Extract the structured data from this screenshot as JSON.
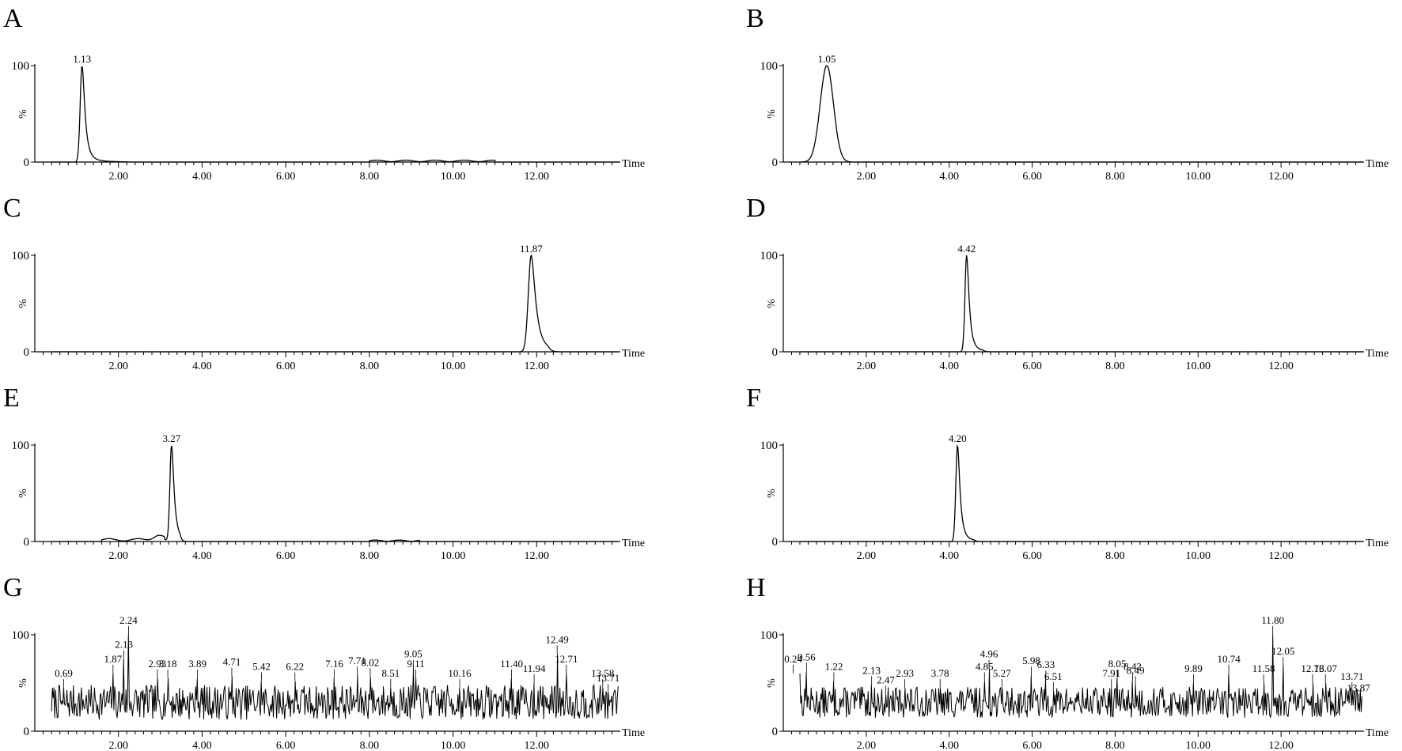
{
  "figure": {
    "background": "#ffffff",
    "line_color": "#000000"
  },
  "chart_data": [
    {
      "type": "line",
      "letter": "A",
      "xlabel": "Time",
      "ylabel": "%",
      "xlim": [
        0,
        14
      ],
      "ylim": [
        0,
        100
      ],
      "xticks": [
        "2.00",
        "4.00",
        "6.00",
        "8.00",
        "10.00",
        "12.00"
      ],
      "yticks": [
        "0",
        "100"
      ],
      "peaks": [
        {
          "x": 1.13,
          "label": "1.13",
          "height": 100,
          "width": 0.045,
          "tail": 0.25
        }
      ],
      "hump": {
        "from": 8.0,
        "to": 11.0,
        "level": 2
      },
      "noise": null
    },
    {
      "type": "line",
      "letter": "B",
      "xlabel": "Time",
      "ylabel": "%",
      "xlim": [
        0,
        14
      ],
      "ylim": [
        0,
        100
      ],
      "xticks": [
        "2.00",
        "4.00",
        "6.00",
        "8.00",
        "10.00",
        "12.00"
      ],
      "yticks": [
        "0",
        "100"
      ],
      "peaks": [
        {
          "x": 1.05,
          "label": "1.05",
          "height": 100,
          "width": 0.16,
          "tail": 0
        }
      ],
      "hump": null,
      "noise": null
    },
    {
      "type": "line",
      "letter": "C",
      "xlabel": "Time",
      "ylabel": "%",
      "xlim": [
        0,
        14
      ],
      "ylim": [
        0,
        100
      ],
      "xticks": [
        "2.00",
        "4.00",
        "6.00",
        "8.00",
        "10.00",
        "12.00"
      ],
      "yticks": [
        "0",
        "100"
      ],
      "peaks": [
        {
          "x": 11.87,
          "label": "11.87",
          "height": 100,
          "width": 0.07,
          "tail": 0.1
        }
      ],
      "hump": null,
      "noise": null
    },
    {
      "type": "line",
      "letter": "D",
      "xlabel": "Time",
      "ylabel": "%",
      "xlim": [
        0,
        14
      ],
      "ylim": [
        0,
        100
      ],
      "xticks": [
        "2.00",
        "4.00",
        "6.00",
        "8.00",
        "10.00",
        "12.00"
      ],
      "yticks": [
        "0",
        "100"
      ],
      "peaks": [
        {
          "x": 4.42,
          "label": "4.42",
          "height": 100,
          "width": 0.04,
          "tail": 0.1
        }
      ],
      "hump": null,
      "noise": null
    },
    {
      "type": "line",
      "letter": "E",
      "xlabel": "Time",
      "ylabel": "%",
      "xlim": [
        0,
        14
      ],
      "ylim": [
        0,
        100
      ],
      "xticks": [
        "2.00",
        "4.00",
        "6.00",
        "8.00",
        "10.00",
        "12.00"
      ],
      "yticks": [
        "0",
        "100"
      ],
      "peaks": [
        {
          "x": 3.27,
          "label": "3.27",
          "height": 100,
          "width": 0.04,
          "tail": 0.05
        },
        {
          "x": 2.95,
          "label": "",
          "height": 5,
          "width": 0.12,
          "tail": 0
        }
      ],
      "hump": {
        "from": 1.6,
        "to": 3.1,
        "level": 3
      },
      "hump2": {
        "from": 8.0,
        "to": 9.2,
        "level": 1.5
      },
      "noise": null
    },
    {
      "type": "line",
      "letter": "F",
      "xlabel": "Time",
      "ylabel": "%",
      "xlim": [
        0,
        14
      ],
      "ylim": [
        0,
        100
      ],
      "xticks": [
        "2.00",
        "4.00",
        "6.00",
        "8.00",
        "10.00",
        "12.00"
      ],
      "yticks": [
        "0",
        "100"
      ],
      "peaks": [
        {
          "x": 4.2,
          "label": "4.20",
          "height": 100,
          "width": 0.04,
          "tail": 0.1
        }
      ],
      "hump": null,
      "noise": null
    },
    {
      "type": "line",
      "letter": "G",
      "xlabel": "Time",
      "ylabel": "%",
      "xlim": [
        0,
        14
      ],
      "ylim": [
        0,
        100
      ],
      "xticks": [
        "2.00",
        "4.00",
        "6.00",
        "8.00",
        "10.00",
        "12.00"
      ],
      "yticks": [
        "0",
        "100"
      ],
      "peaks": [
        {
          "x": 0.69,
          "label": "0.69",
          "height": 45
        },
        {
          "x": 1.87,
          "label": "1.87",
          "height": 60
        },
        {
          "x": 2.13,
          "label": "2.13",
          "height": 75
        },
        {
          "x": 2.24,
          "label": "2.24",
          "height": 100
        },
        {
          "x": 2.93,
          "label": "2.93",
          "height": 55
        },
        {
          "x": 3.18,
          "label": "3.18",
          "height": 55
        },
        {
          "x": 3.89,
          "label": "3.89",
          "height": 55
        },
        {
          "x": 4.71,
          "label": "4.71",
          "height": 57
        },
        {
          "x": 5.42,
          "label": "5.42",
          "height": 52
        },
        {
          "x": 6.22,
          "label": "6.22",
          "height": 52
        },
        {
          "x": 7.16,
          "label": "7.16",
          "height": 55
        },
        {
          "x": 7.71,
          "label": "7.71",
          "height": 58
        },
        {
          "x": 8.02,
          "label": "8.02",
          "height": 56
        },
        {
          "x": 8.51,
          "label": "8.51",
          "height": 45
        },
        {
          "x": 9.05,
          "label": "9.05",
          "height": 65
        },
        {
          "x": 9.11,
          "label": "9.11",
          "height": 55
        },
        {
          "x": 10.16,
          "label": "10.16",
          "height": 45
        },
        {
          "x": 11.4,
          "label": "11.40",
          "height": 55
        },
        {
          "x": 11.94,
          "label": "11.94",
          "height": 50
        },
        {
          "x": 12.49,
          "label": "12.49",
          "height": 80
        },
        {
          "x": 12.71,
          "label": "12.71",
          "height": 60
        },
        {
          "x": 13.58,
          "label": "13.58",
          "height": 45
        },
        {
          "x": 13.71,
          "label": "13.71",
          "height": 40
        }
      ],
      "noise": {
        "base": 30,
        "amp": 18,
        "seed": 7
      }
    },
    {
      "type": "line",
      "letter": "H",
      "xlabel": "Time",
      "ylabel": "%",
      "xlim": [
        0,
        14
      ],
      "ylim": [
        0,
        100
      ],
      "xticks": [
        "2.00",
        "4.00",
        "6.00",
        "8.00",
        "10.00",
        "12.00"
      ],
      "yticks": [
        "0",
        "100"
      ],
      "peaks": [
        {
          "x": 0.24,
          "label": "0.24",
          "height": 60
        },
        {
          "x": 0.56,
          "label": "0.56",
          "height": 62
        },
        {
          "x": 1.22,
          "label": "1.22",
          "height": 52
        },
        {
          "x": 2.13,
          "label": "2.13",
          "height": 48
        },
        {
          "x": 2.47,
          "label": "2.47",
          "height": 38
        },
        {
          "x": 2.93,
          "label": "2.93",
          "height": 45
        },
        {
          "x": 3.78,
          "label": "3.78",
          "height": 45
        },
        {
          "x": 4.85,
          "label": "4.85",
          "height": 52
        },
        {
          "x": 4.96,
          "label": "4.96",
          "height": 65
        },
        {
          "x": 5.27,
          "label": "5.27",
          "height": 45
        },
        {
          "x": 5.98,
          "label": "5.98",
          "height": 58
        },
        {
          "x": 6.33,
          "label": "6.33",
          "height": 54
        },
        {
          "x": 6.51,
          "label": "6.51",
          "height": 42
        },
        {
          "x": 7.91,
          "label": "7.91",
          "height": 45
        },
        {
          "x": 8.05,
          "label": "8.05",
          "height": 55
        },
        {
          "x": 8.42,
          "label": "8.42",
          "height": 52
        },
        {
          "x": 8.49,
          "label": "8.49",
          "height": 48
        },
        {
          "x": 9.89,
          "label": "9.89",
          "height": 50
        },
        {
          "x": 10.74,
          "label": "10.74",
          "height": 60
        },
        {
          "x": 11.58,
          "label": "11.58",
          "height": 50
        },
        {
          "x": 11.8,
          "label": "11.80",
          "height": 100
        },
        {
          "x": 12.05,
          "label": "12.05",
          "height": 68
        },
        {
          "x": 12.76,
          "label": "12.76",
          "height": 50
        },
        {
          "x": 13.07,
          "label": "13.07",
          "height": 50
        },
        {
          "x": 13.71,
          "label": "13.71",
          "height": 42
        },
        {
          "x": 13.87,
          "label": "13.87",
          "height": 30
        }
      ],
      "noise": {
        "base": 30,
        "amp": 16,
        "seed": 13
      }
    }
  ]
}
